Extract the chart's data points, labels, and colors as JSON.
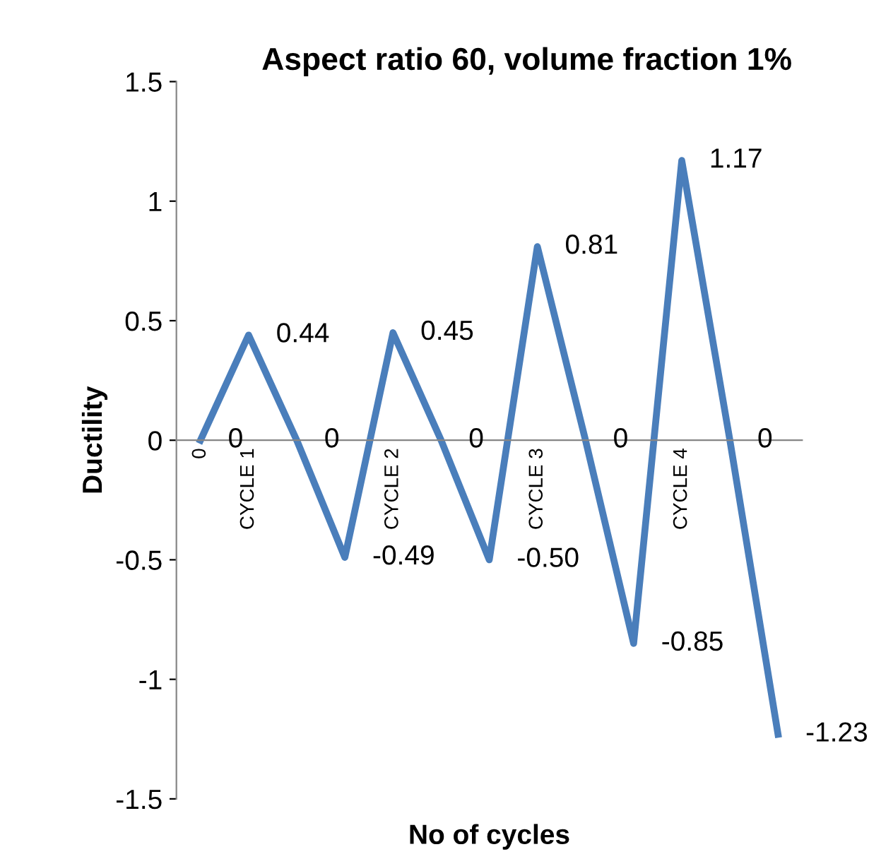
{
  "chart_data": {
    "type": "line",
    "title": "Aspect ratio 60, volume fraction 1%",
    "xlabel": "No of cycles",
    "ylabel": "Ductility",
    "categories": [
      "0",
      "CYCLE 1",
      null,
      null,
      "CYCLE 2",
      null,
      null,
      "CYCLE 3",
      null,
      null,
      "CYCLE 4",
      null,
      null
    ],
    "series": [
      {
        "color": "#4a7ebb",
        "values": [
          0,
          0.44,
          0,
          -0.49,
          0.45,
          0,
          -0.5,
          0.81,
          0,
          -0.85,
          1.17,
          0,
          -1.23
        ],
        "value_labels": [
          "0",
          "0.44",
          "0",
          "-0.49",
          "0.45",
          "0",
          "-0.50",
          "0.81",
          "0",
          "-0.85",
          "1.17",
          "0",
          "-1.23"
        ]
      }
    ],
    "ylim": [
      -1.5,
      1.5
    ],
    "yticks": [
      -1.5,
      -1,
      -0.5,
      0,
      0.5,
      1,
      1.5
    ],
    "grid": false,
    "legend": false,
    "marker": "none",
    "line_style": "solid"
  }
}
